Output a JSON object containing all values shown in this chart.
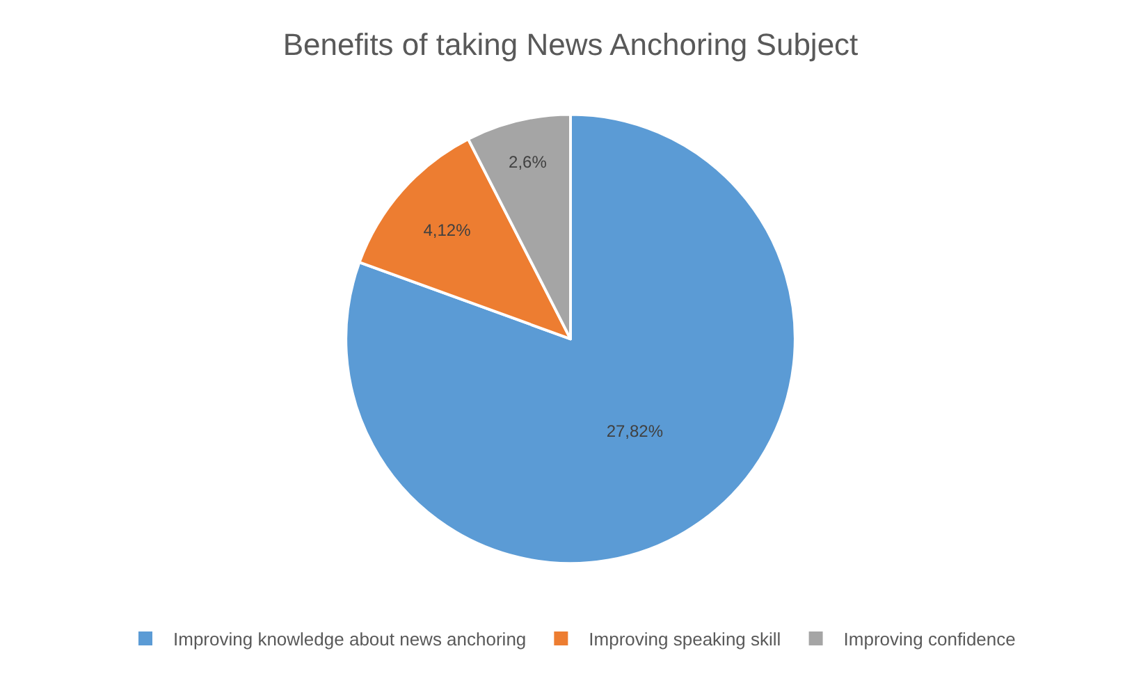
{
  "chart_data": {
    "type": "pie",
    "title": "Benefits of taking News Anchoring Subject",
    "categories": [
      "Improving knowledge about news anchoring",
      "Improving speaking skill",
      "Improving confidence"
    ],
    "values": [
      27.82,
      4.12,
      2.6
    ],
    "colors": [
      "#5b9bd5",
      "#ed7d31",
      "#a5a5a5"
    ],
    "value_labels": [
      "27,82%",
      "4,12%",
      "2,6%"
    ],
    "legend": "bottom"
  }
}
